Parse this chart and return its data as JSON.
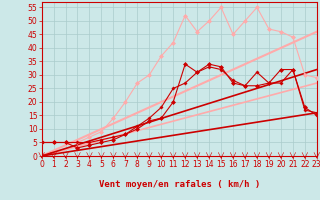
{
  "title": "",
  "xlabel": "Vent moyen/en rafales ( km/h )",
  "background_color": "#cce8e8",
  "grid_color": "#aacccc",
  "xlim": [
    0,
    23
  ],
  "ylim": [
    0,
    57
  ],
  "yticks": [
    0,
    5,
    10,
    15,
    20,
    25,
    30,
    35,
    40,
    45,
    50,
    55
  ],
  "xticks": [
    0,
    1,
    2,
    3,
    4,
    5,
    6,
    7,
    8,
    9,
    10,
    11,
    12,
    13,
    14,
    15,
    16,
    17,
    18,
    19,
    20,
    21,
    22,
    23
  ],
  "series": [
    {
      "x": [
        0,
        1,
        2,
        3,
        4,
        5,
        6,
        7,
        8,
        9,
        10,
        11,
        12,
        13,
        14,
        15,
        16,
        17,
        18,
        19,
        20,
        21,
        22,
        23
      ],
      "y": [
        5,
        5,
        5,
        5,
        7,
        9,
        14,
        20,
        27,
        30,
        37,
        42,
        52,
        46,
        50,
        55,
        45,
        50,
        55,
        47,
        46,
        44,
        30,
        29
      ],
      "color": "#ffaaaa",
      "marker": "D",
      "markersize": 2.0,
      "linewidth": 0.8,
      "linestyle": "-",
      "zorder": 3
    },
    {
      "x": [
        0,
        23
      ],
      "y": [
        0,
        46
      ],
      "color": "#ffaaaa",
      "marker": null,
      "markersize": 0,
      "linewidth": 1.5,
      "linestyle": "-",
      "zorder": 2
    },
    {
      "x": [
        0,
        23
      ],
      "y": [
        0,
        27
      ],
      "color": "#ffaaaa",
      "marker": null,
      "markersize": 0,
      "linewidth": 1.2,
      "linestyle": "-",
      "zorder": 2
    },
    {
      "x": [
        0,
        1,
        2,
        3,
        4,
        5,
        6,
        7,
        8,
        9,
        10,
        11,
        12,
        13,
        14,
        15,
        16,
        17,
        18,
        19,
        20,
        21,
        22,
        23
      ],
      "y": [
        5,
        5,
        5,
        3,
        4,
        5,
        6,
        8,
        10,
        13,
        14,
        20,
        34,
        31,
        34,
        33,
        27,
        26,
        26,
        27,
        32,
        32,
        18,
        15
      ],
      "color": "#cc0000",
      "marker": "D",
      "markersize": 2.0,
      "linewidth": 0.8,
      "linestyle": "-",
      "zorder": 4
    },
    {
      "x": [
        0,
        1,
        2,
        3,
        4,
        5,
        6,
        7,
        8,
        9,
        10,
        11,
        12,
        13,
        14,
        15,
        16,
        17,
        18,
        19,
        20,
        21,
        22,
        23
      ],
      "y": [
        5,
        5,
        5,
        5,
        5,
        6,
        7,
        8,
        11,
        14,
        18,
        25,
        27,
        31,
        33,
        32,
        28,
        26,
        31,
        27,
        27,
        32,
        17,
        16
      ],
      "color": "#cc0000",
      "marker": "P",
      "markersize": 2.0,
      "linewidth": 0.8,
      "linestyle": "-",
      "zorder": 4
    },
    {
      "x": [
        0,
        23
      ],
      "y": [
        0,
        32
      ],
      "color": "#cc0000",
      "marker": null,
      "markersize": 0,
      "linewidth": 1.2,
      "linestyle": "-",
      "zorder": 2
    },
    {
      "x": [
        0,
        23
      ],
      "y": [
        0,
        16
      ],
      "color": "#cc0000",
      "marker": null,
      "markersize": 0,
      "linewidth": 1.2,
      "linestyle": "-",
      "zorder": 2
    }
  ],
  "tick_fontsize": 5.5,
  "xlabel_fontsize": 6.5,
  "xlabel_color": "#cc0000",
  "tick_color": "#cc0000",
  "spine_color": "#cc0000"
}
